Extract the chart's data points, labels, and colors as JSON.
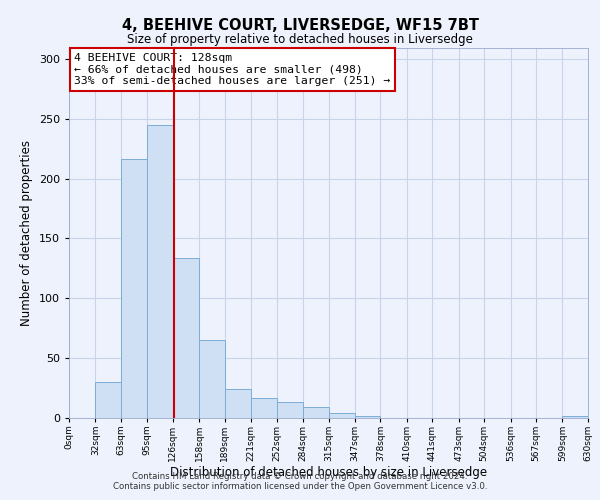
{
  "title": "4, BEEHIVE COURT, LIVERSEDGE, WF15 7BT",
  "subtitle": "Size of property relative to detached houses in Liversedge",
  "xlabel": "Distribution of detached houses by size in Liversedge",
  "ylabel": "Number of detached properties",
  "bar_values": [
    0,
    30,
    217,
    245,
    134,
    65,
    24,
    16,
    13,
    9,
    4,
    1,
    0,
    0,
    0,
    0,
    0,
    0,
    0,
    1
  ],
  "bin_edges": [
    0,
    32,
    63,
    95,
    126,
    158,
    189,
    221,
    252,
    284,
    315,
    347,
    378,
    410,
    441,
    473,
    504,
    536,
    567,
    599,
    630
  ],
  "tick_labels": [
    "0sqm",
    "32sqm",
    "63sqm",
    "95sqm",
    "126sqm",
    "158sqm",
    "189sqm",
    "221sqm",
    "252sqm",
    "284sqm",
    "315sqm",
    "347sqm",
    "378sqm",
    "410sqm",
    "441sqm",
    "473sqm",
    "504sqm",
    "536sqm",
    "567sqm",
    "599sqm",
    "630sqm"
  ],
  "bar_color": "#cfe0f5",
  "bar_edge_color": "#7badd4",
  "vline_x": 128,
  "vline_color": "#cc0000",
  "annotation_title": "4 BEEHIVE COURT: 128sqm",
  "annotation_line1": "← 66% of detached houses are smaller (498)",
  "annotation_line2": "33% of semi-detached houses are larger (251) →",
  "annotation_box_color": "#ffffff",
  "annotation_box_edge_color": "#cc0000",
  "ylim": [
    0,
    310
  ],
  "yticks": [
    0,
    50,
    100,
    150,
    200,
    250,
    300
  ],
  "footer1": "Contains HM Land Registry data © Crown copyright and database right 2024.",
  "footer2": "Contains public sector information licensed under the Open Government Licence v3.0.",
  "bg_color": "#eef2fc",
  "grid_color": "#c8d4ec"
}
